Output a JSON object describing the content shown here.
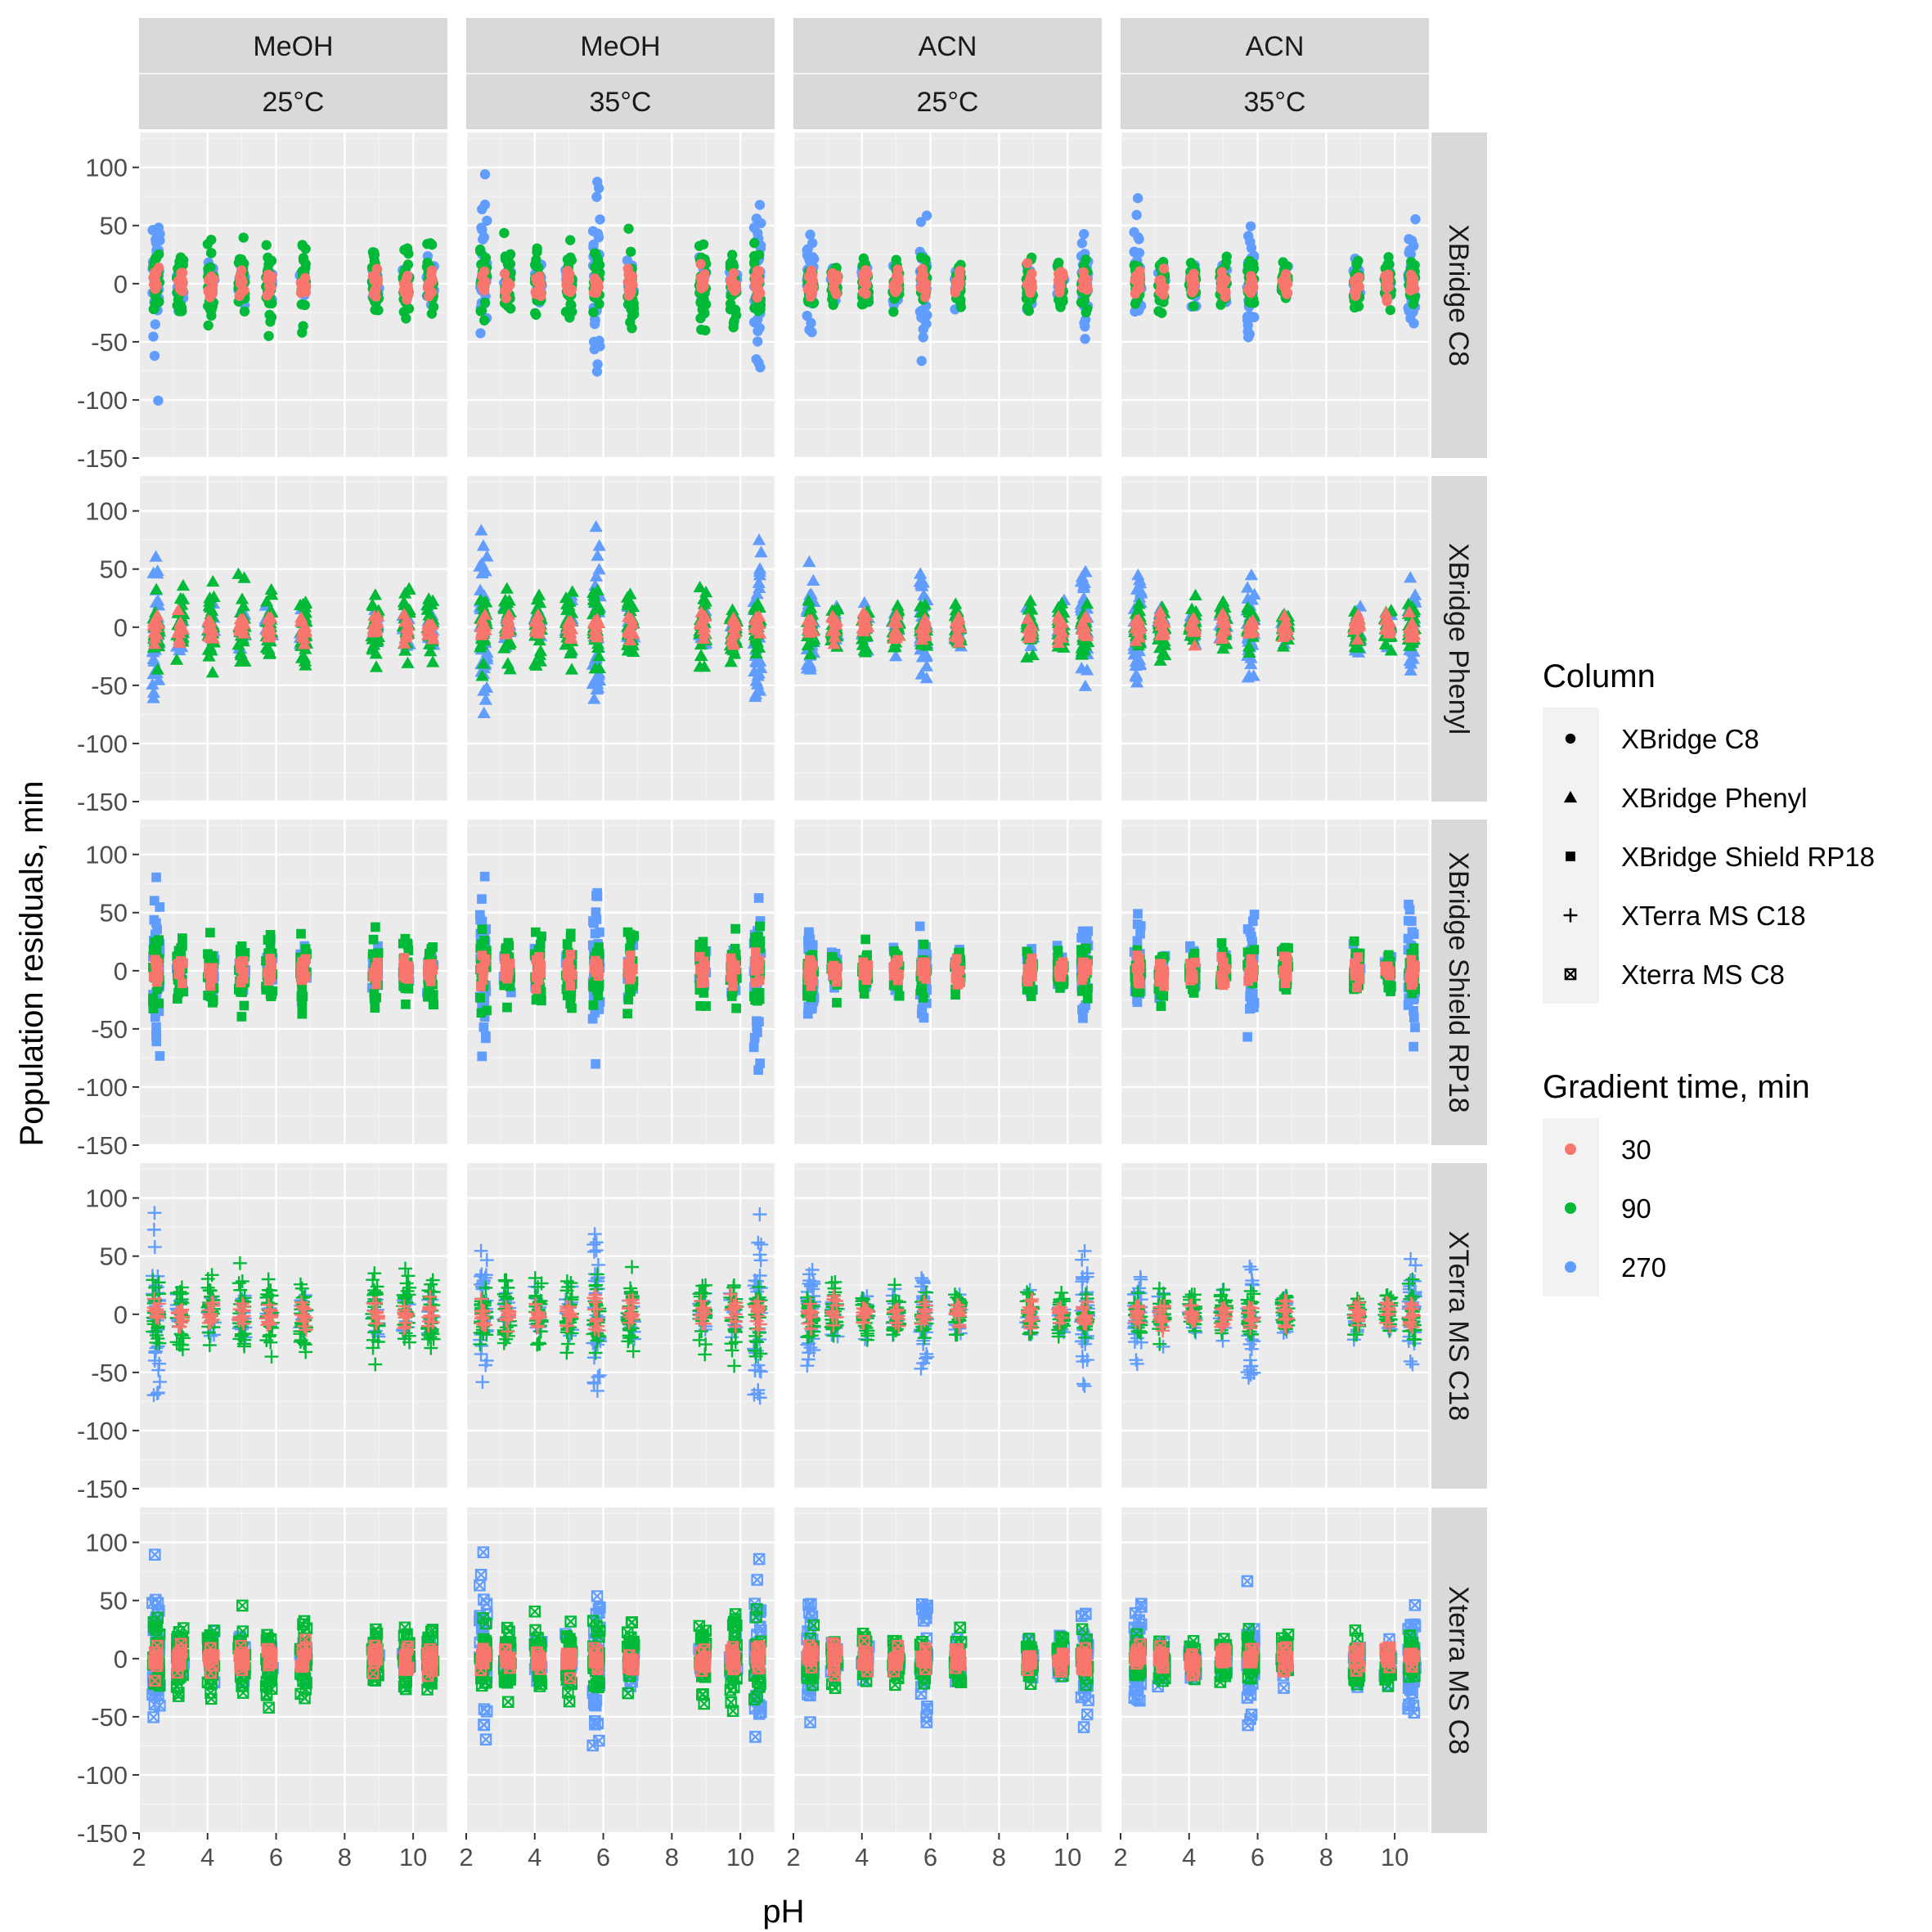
{
  "chart_data": {
    "type": "scatter",
    "xlabel": "pH",
    "ylabel": "Population residuals, min",
    "xlim": [
      2,
      11
    ],
    "ylim": [
      -150,
      130
    ],
    "x_ticks": [
      2,
      4,
      6,
      8,
      10
    ],
    "y_ticks": [
      100,
      50,
      0,
      -50,
      -100,
      -150
    ],
    "facet_cols": [
      {
        "solvent": "MeOH",
        "temp": "25°C"
      },
      {
        "solvent": "MeOH",
        "temp": "35°C"
      },
      {
        "solvent": "ACN",
        "temp": "25°C"
      },
      {
        "solvent": "ACN",
        "temp": "35°C"
      }
    ],
    "facet_rows": [
      "XBridge C8",
      "XBridge Phenyl",
      "XBridge Shield RP18",
      "XTerra MS C18",
      "Xterra MS C8"
    ],
    "ph_levels": [
      2.5,
      3.2,
      4.1,
      5.0,
      5.8,
      6.8,
      8.9,
      9.8,
      10.5
    ],
    "grid": true,
    "legend_position": "right",
    "legends": {
      "shape": {
        "title": "Column",
        "entries": [
          {
            "label": "XBridge C8",
            "shape": "circle"
          },
          {
            "label": "XBridge Phenyl",
            "shape": "triangle"
          },
          {
            "label": "XBridge Shield RP18",
            "shape": "square"
          },
          {
            "label": "XTerra MS C18",
            "shape": "plus"
          },
          {
            "label": "Xterra MS C8",
            "shape": "boxed-x"
          }
        ]
      },
      "color": {
        "title": "Gradient time, min",
        "entries": [
          {
            "label": "30",
            "color": "#F8766D"
          },
          {
            "label": "90",
            "color": "#00BA38"
          },
          {
            "label": "270",
            "color": "#619CFF"
          }
        ]
      }
    },
    "series_spread_note_values": {
      "typical_range_30": [
        -15,
        15
      ],
      "typical_range_90": [
        -35,
        45
      ],
      "typical_range_270": [
        -120,
        130
      ]
    }
  }
}
